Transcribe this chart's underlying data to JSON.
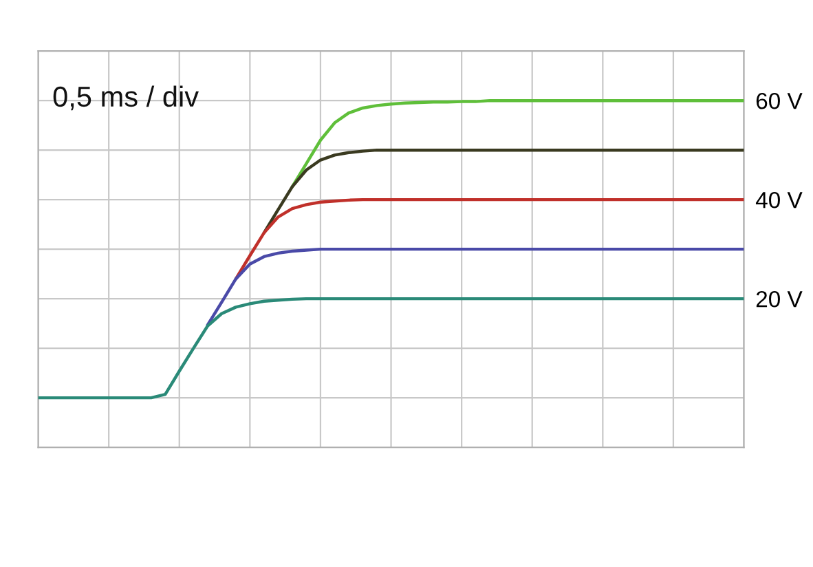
{
  "chart_data": {
    "type": "line",
    "categories": [
      null,
      null,
      null,
      null,
      null,
      null,
      null,
      null,
      null,
      null,
      null,
      null,
      null,
      null,
      null,
      null,
      null,
      null,
      null,
      null,
      null,
      null,
      null,
      null,
      null,
      null,
      null,
      null,
      null,
      null,
      null,
      null,
      null,
      null,
      null,
      null,
      null,
      null,
      null,
      null,
      null,
      null,
      null,
      null,
      null,
      null,
      null,
      null,
      null,
      null,
      null
    ],
    "series": [
      {
        "color": "#5fbf3a",
        "values": [
          null,
          null,
          null,
          null,
          null,
          null,
          null,
          null,
          null,
          null,
          null,
          null,
          null,
          null,
          null,
          null,
          null,
          null,
          42.6,
          47.3,
          52,
          55.5,
          57.5,
          58.5,
          59,
          59.3,
          59.5,
          59.6,
          59.7,
          59.7,
          59.8,
          59.8,
          60,
          60,
          60,
          60,
          60,
          60,
          60,
          60,
          60,
          60,
          60,
          60,
          60,
          60,
          60,
          60,
          60,
          60,
          60
        ]
      },
      {
        "color": "#3a3a20",
        "values": [
          null,
          null,
          null,
          null,
          null,
          null,
          null,
          null,
          null,
          null,
          null,
          null,
          null,
          null,
          null,
          null,
          33.3,
          38,
          42.6,
          46,
          48,
          49,
          49.5,
          49.8,
          50,
          50,
          50,
          50,
          50,
          50,
          50,
          50,
          50,
          50,
          50,
          50,
          50,
          50,
          50,
          50,
          50,
          50,
          50,
          50,
          50,
          50,
          50,
          50,
          50,
          50,
          50
        ]
      },
      {
        "color": "#c0302a",
        "values": [
          null,
          null,
          null,
          null,
          null,
          null,
          null,
          null,
          null,
          null,
          null,
          null,
          null,
          null,
          24,
          28.7,
          33.3,
          36.5,
          38.2,
          39,
          39.5,
          39.7,
          39.9,
          40,
          40,
          40,
          40,
          40,
          40,
          40,
          40,
          40,
          40,
          40,
          40,
          40,
          40,
          40,
          40,
          40,
          40,
          40,
          40,
          40,
          40,
          40,
          40,
          40,
          40,
          40,
          40
        ]
      },
      {
        "color": "#4a4aa8",
        "values": [
          null,
          null,
          null,
          null,
          null,
          null,
          null,
          null,
          null,
          null,
          null,
          null,
          14.7,
          19.3,
          24,
          27,
          28.5,
          29.2,
          29.6,
          29.8,
          30,
          30,
          30,
          30,
          30,
          30,
          30,
          30,
          30,
          30,
          30,
          30,
          30,
          30,
          30,
          30,
          30,
          30,
          30,
          30,
          30,
          30,
          30,
          30,
          30,
          30,
          30,
          30,
          30,
          30,
          30
        ]
      },
      {
        "color": "#2a8a78",
        "values": [
          0,
          0,
          0,
          0,
          0,
          0,
          0,
          0,
          0,
          0.7,
          5.4,
          10,
          14.5,
          17,
          18.3,
          19,
          19.5,
          19.7,
          19.9,
          20,
          20,
          20,
          20,
          20,
          20,
          20,
          20,
          20,
          20,
          20,
          20,
          20,
          20,
          20,
          20,
          20,
          20,
          20,
          20,
          20,
          20,
          20,
          20,
          20,
          20,
          20,
          20,
          20,
          20,
          20,
          20
        ]
      }
    ],
    "ylim": [
      -10,
      70
    ],
    "yticks": [
      {
        "value": 0,
        "label": null
      },
      {
        "value": 10,
        "label": null
      },
      {
        "value": 20,
        "label": "20 V"
      },
      {
        "value": 30,
        "label": null
      },
      {
        "value": 40,
        "label": "40 V"
      },
      {
        "value": 50,
        "label": null
      },
      {
        "value": 60,
        "label": "60 V"
      }
    ],
    "tick_labels": "y",
    "grid": true,
    "annotations": [
      "0,5 ms / div"
    ]
  }
}
